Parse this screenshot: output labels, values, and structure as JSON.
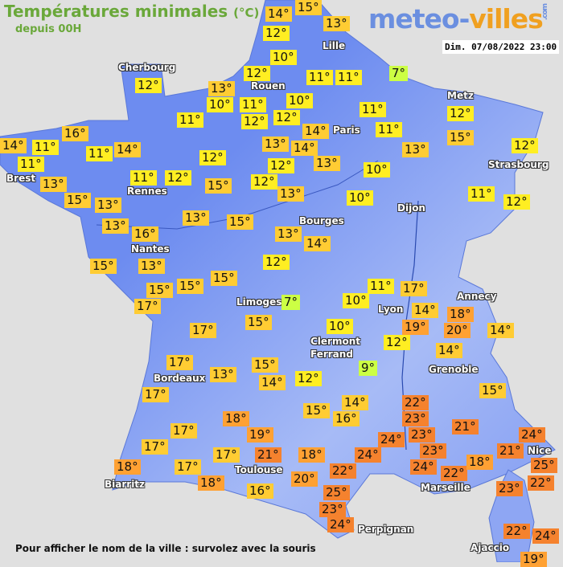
{
  "header": {
    "title": "Températures minimales",
    "unit": "(°C)",
    "subtitle": "depuis 00H",
    "logo_part1": "meteo-",
    "logo_part2": "villes",
    "logo_suffix": ".com",
    "datetime": "Dim. 07/08/2022 23:00"
  },
  "colors": {
    "background": "#e0e0e0",
    "land": "#6f8ff0",
    "cold": "#ccff44",
    "mild": "#ffee22",
    "warm": "#ffcc33",
    "hot": "#ffa133",
    "very_hot": "#f5822e"
  },
  "cities": [
    "Cherbourg",
    "Rouen",
    "Lille",
    "Paris",
    "Metz",
    "Strasbourg",
    "Brest",
    "Rennes",
    "Nantes",
    "Bourges",
    "Dijon",
    "Limoges",
    "Clermont",
    "Ferrand",
    "Lyon",
    "Annecy",
    "Grenoble",
    "Bordeaux",
    "Toulouse",
    "Biarritz",
    "Marseille",
    "Nice",
    "Ajaccio",
    "Perpignan"
  ],
  "temperatures": [
    14,
    15,
    12,
    13,
    10,
    12,
    13,
    10,
    11,
    12,
    11,
    10,
    11,
    11,
    7,
    12,
    14,
    11,
    11,
    13,
    14,
    13,
    13,
    12,
    15,
    12,
    12,
    10,
    13,
    10,
    11,
    12,
    14,
    11,
    11,
    16,
    11,
    14,
    13,
    15,
    13,
    11,
    12,
    12,
    15,
    12,
    12,
    13,
    16,
    13,
    15,
    13,
    14,
    15,
    13,
    15,
    15,
    15,
    12,
    17,
    7,
    10,
    11,
    17,
    14,
    19,
    18,
    20,
    14,
    10,
    15,
    17,
    12,
    14,
    9,
    15,
    17,
    13,
    14,
    12,
    17,
    15,
    14,
    15,
    16,
    22,
    23,
    18,
    21,
    23,
    24,
    17,
    17,
    19,
    24,
    21,
    23,
    24,
    22,
    25,
    17,
    21,
    18,
    24,
    18,
    18,
    17,
    18,
    22,
    20,
    16,
    25,
    23,
    22,
    23,
    24,
    22,
    24,
    19
  ],
  "footer": "Pour afficher le nom de la ville : survolez avec la souris"
}
